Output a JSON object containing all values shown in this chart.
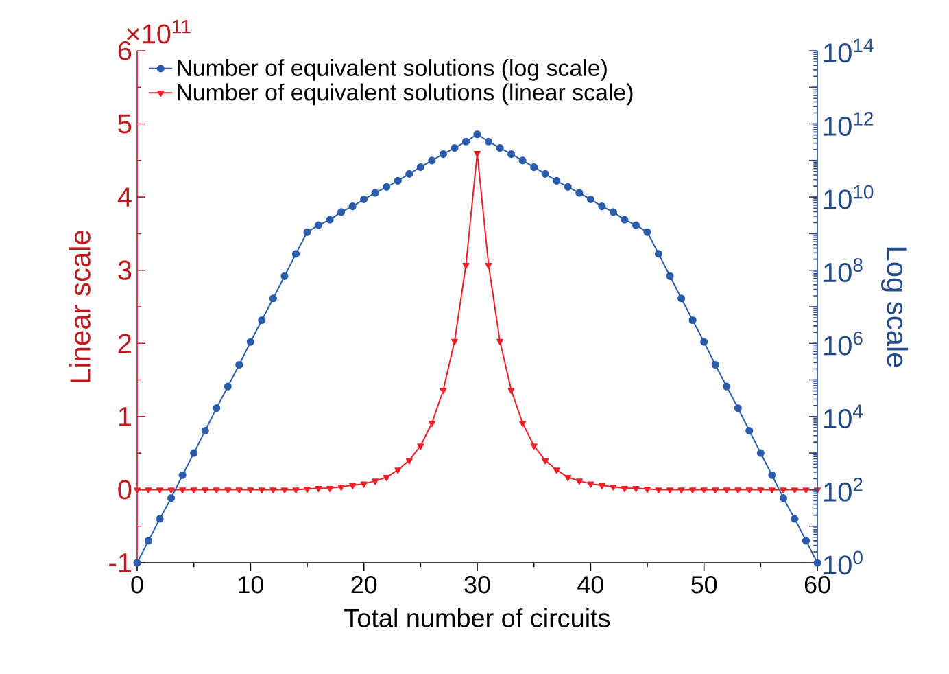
{
  "chart_data": {
    "type": "line",
    "xlabel": "Total number of circuits",
    "ylabel": "Linear scale",
    "y2label": "Log scale",
    "annotations": [
      "×10$^{11}$"
    ],
    "x": [
      0,
      1,
      2,
      3,
      4,
      5,
      6,
      7,
      8,
      9,
      10,
      11,
      12,
      13,
      14,
      15,
      16,
      17,
      18,
      19,
      20,
      21,
      22,
      23,
      24,
      25,
      26,
      27,
      28,
      29,
      30,
      31,
      32,
      33,
      34,
      35,
      36,
      37,
      38,
      39,
      40,
      41,
      42,
      43,
      44,
      45,
      46,
      47,
      48,
      49,
      50,
      51,
      52,
      53,
      54,
      55,
      56,
      57,
      58,
      59,
      60
    ],
    "series": [
      {
        "name": "Number of equivalent solutions (log scale)",
        "color": "#2b5cab",
        "axis": "y2",
        "marker": "circle",
        "values": [
          1,
          4,
          16,
          59,
          250,
          1000,
          4100,
          17000,
          66000,
          260000,
          1100000,
          4300000,
          17000000,
          69000000,
          280000000,
          1100000000.0,
          1700000000.0,
          2400000000.0,
          3900000000.0,
          5600000000.0,
          8700000000.0,
          13000000000.0,
          19000000000.0,
          28000000000.0,
          43000000000.0,
          66000000000.0,
          100000000000.0,
          150000000000.0,
          220000000000.0,
          330000000000.0,
          520000000000.0,
          330000000000.0,
          220000000000.0,
          150000000000.0,
          100000000000.0,
          66000000000.0,
          43000000000.0,
          28000000000.0,
          19000000000.0,
          13000000000.0,
          8700000000.0,
          5600000000.0,
          3900000000.0,
          2400000000.0,
          1700000000.0,
          1100000000.0,
          280000000,
          69000000,
          17000000,
          4300000,
          1100000,
          260000,
          66000,
          17000,
          4100,
          1000,
          250,
          59,
          16,
          4,
          1
        ]
      },
      {
        "name": "Number of equivalent solutions (linear scale)",
        "color": "#ee2027",
        "marker": "triangle",
        "values": [
          0,
          0,
          0,
          0,
          0,
          0,
          0,
          0,
          0,
          0,
          0,
          0,
          0,
          0,
          0,
          0.01,
          0.02,
          0.02,
          0.04,
          0.06,
          0.08,
          0.12,
          0.17,
          0.27,
          0.4,
          0.6,
          0.91,
          1.36,
          2.03,
          3.07,
          4.6,
          3.07,
          2.03,
          1.36,
          0.91,
          0.6,
          0.4,
          0.27,
          0.17,
          0.12,
          0.08,
          0.06,
          0.04,
          0.02,
          0.02,
          0.01,
          0,
          0,
          0,
          0,
          0,
          0,
          0,
          0,
          0,
          0,
          0,
          0,
          0,
          0,
          0
        ]
      }
    ],
    "xlim": [
      0,
      60
    ],
    "xticks": [
      0,
      10,
      20,
      30,
      40,
      50,
      60
    ],
    "ylim": [
      -1,
      6
    ],
    "yticks": [
      -1,
      0,
      1,
      2,
      3,
      4,
      5,
      6
    ],
    "log": "y2",
    "y2lim": [
      1,
      100000000000000.0
    ],
    "y2ticks": [
      {
        "value": 1,
        "label": "10$^{0}$"
      },
      {
        "value": 10,
        "label": null
      },
      {
        "value": 100,
        "label": "10$^{2}$"
      },
      {
        "value": 1000,
        "label": null
      },
      {
        "value": 10000,
        "label": "10$^{4}$"
      },
      {
        "value": 100000,
        "label": null
      },
      {
        "value": 1000000,
        "label": "10$^{6}$"
      },
      {
        "value": 10000000,
        "label": null
      },
      {
        "value": 100000000,
        "label": "10$^{8}$"
      },
      {
        "value": 1000000000,
        "label": null
      },
      {
        "value": 10000000000,
        "label": "10$^{10}$"
      },
      {
        "value": 100000000000,
        "label": null
      },
      {
        "value": 1000000000000,
        "label": "10$^{12}$"
      },
      {
        "value": 10000000000000,
        "label": null
      },
      {
        "value": 100000000000000,
        "label": "10$^{14}$"
      }
    ],
    "legend": "top left",
    "line_style": "solid"
  }
}
